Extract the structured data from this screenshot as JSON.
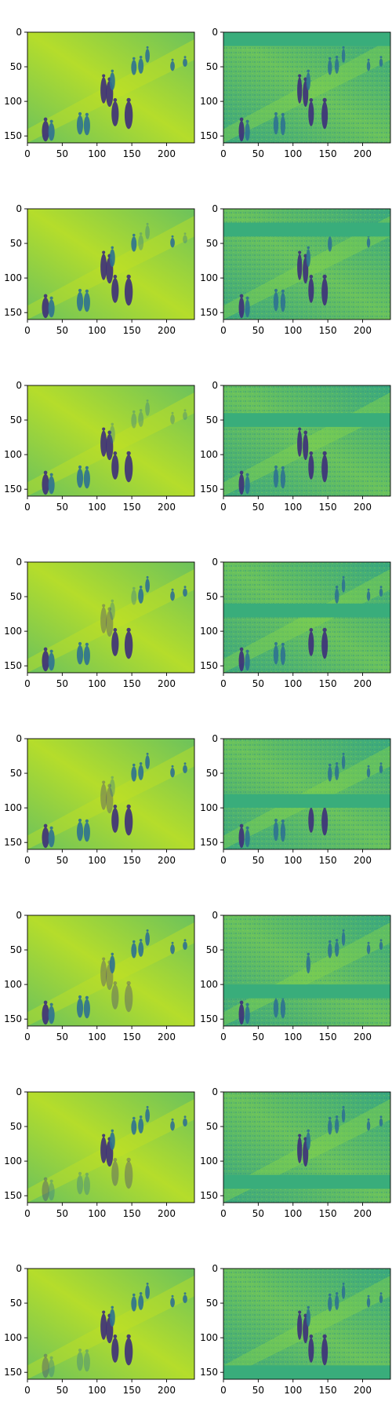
{
  "figure": {
    "rows": 8,
    "columns": 2,
    "colormap": "viridis"
  },
  "chart_data": {
    "type": "heatmap",
    "description": "8x2 grid of image panels (viridis colormap). Left column: reconstructed frame; right column: input frame with a horizontal band masked.",
    "xlim": [
      0,
      240
    ],
    "ylim": [
      160,
      0
    ],
    "x_ticks": [
      "0",
      "50",
      "100",
      "150",
      "200"
    ],
    "y_ticks": [
      "0",
      "50",
      "100",
      "150"
    ],
    "x_tick_values": [
      0,
      50,
      100,
      150,
      200
    ],
    "y_tick_values": [
      0,
      50,
      100,
      150
    ],
    "panels": [
      {
        "row": 1,
        "masked_rows": [
          0,
          20
        ]
      },
      {
        "row": 2,
        "masked_rows": [
          20,
          40
        ]
      },
      {
        "row": 3,
        "masked_rows": [
          40,
          60
        ]
      },
      {
        "row": 4,
        "masked_rows": [
          60,
          80
        ]
      },
      {
        "row": 5,
        "masked_rows": [
          80,
          100
        ]
      },
      {
        "row": 6,
        "masked_rows": [
          100,
          120
        ]
      },
      {
        "row": 7,
        "masked_rows": [
          120,
          140
        ]
      },
      {
        "row": 8,
        "masked_rows": [
          140,
          160
        ]
      }
    ],
    "colors": {
      "left_background": "#6cc25c",
      "left_bright": "#b5dd2b",
      "right_background": "#44b07a",
      "right_mask": "#39ad7b",
      "figure_dark": "#3d2f7a",
      "figure_mid": "#2e7191"
    }
  }
}
